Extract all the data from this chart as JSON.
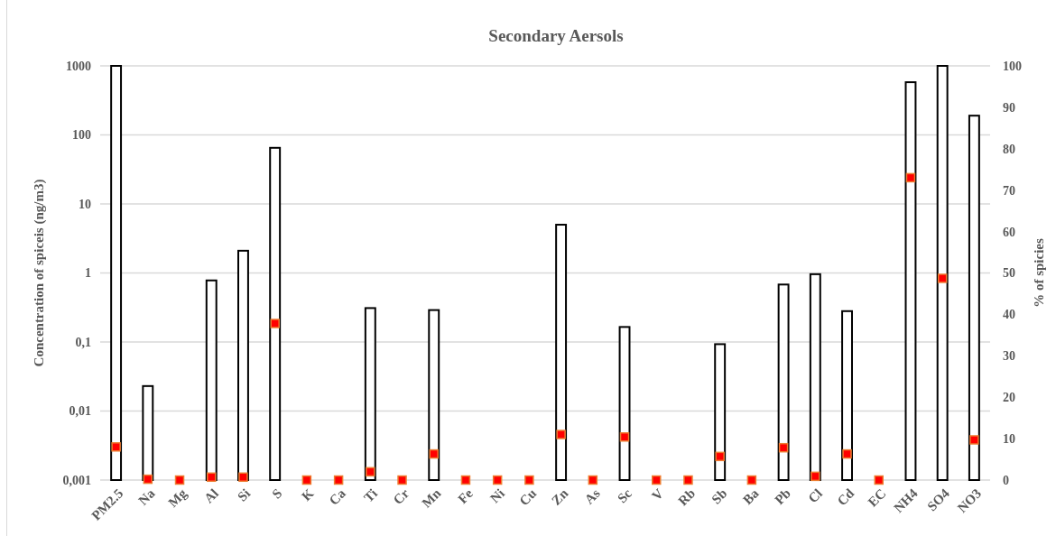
{
  "chart_data": {
    "type": "bar",
    "title": "Secondary Aersols",
    "ylabel": "Concentration of spiceis (ng/m3)",
    "y2label": "% of spicies",
    "categories": [
      "PM2.5",
      "Na",
      "Mg",
      "Al",
      "Si",
      "S",
      "K",
      "Ca",
      "Ti",
      "Cr",
      "Mn",
      "Fe",
      "Ni",
      "Cu",
      "Zn",
      "As",
      "Sc",
      "V",
      "Rb",
      "Sb",
      "Ba",
      "Pb",
      "Cl",
      "Cd",
      "EC",
      "NH4",
      "SO4",
      "NO3"
    ],
    "series": [
      {
        "color": "#ffffff",
        "values": [
          1000,
          0.023,
          null,
          0.78,
          2.1,
          65,
          null,
          null,
          0.31,
          null,
          0.29,
          null,
          null,
          null,
          5.0,
          null,
          0.165,
          null,
          null,
          0.093,
          null,
          0.68,
          0.96,
          0.28,
          null,
          580,
          1000,
          190
        ]
      },
      {
        "type": "scatter",
        "axis": "y2",
        "color": "#ff0000",
        "values": [
          8,
          0.2,
          0,
          0.7,
          0.7,
          37.8,
          0,
          0,
          2,
          0,
          6.3,
          0,
          0,
          0,
          11,
          0,
          10.4,
          0,
          0,
          5.7,
          0,
          7.8,
          0.9,
          6.3,
          0,
          73,
          48.7,
          9.7
        ]
      }
    ],
    "marker": "square",
    "log": true,
    "grid": "y",
    "ylim": [
      0.001,
      1000
    ],
    "yticks": [
      {
        "value": 0.001,
        "label": "0,001"
      },
      {
        "value": 0.01,
        "label": "0,01"
      },
      {
        "value": 0.1,
        "label": "0,1"
      },
      1,
      10,
      100,
      1000
    ],
    "y2lim": [
      0,
      100
    ],
    "y2ticks": [
      0,
      10,
      20,
      30,
      40,
      50,
      60,
      70,
      80,
      90,
      100
    ]
  }
}
